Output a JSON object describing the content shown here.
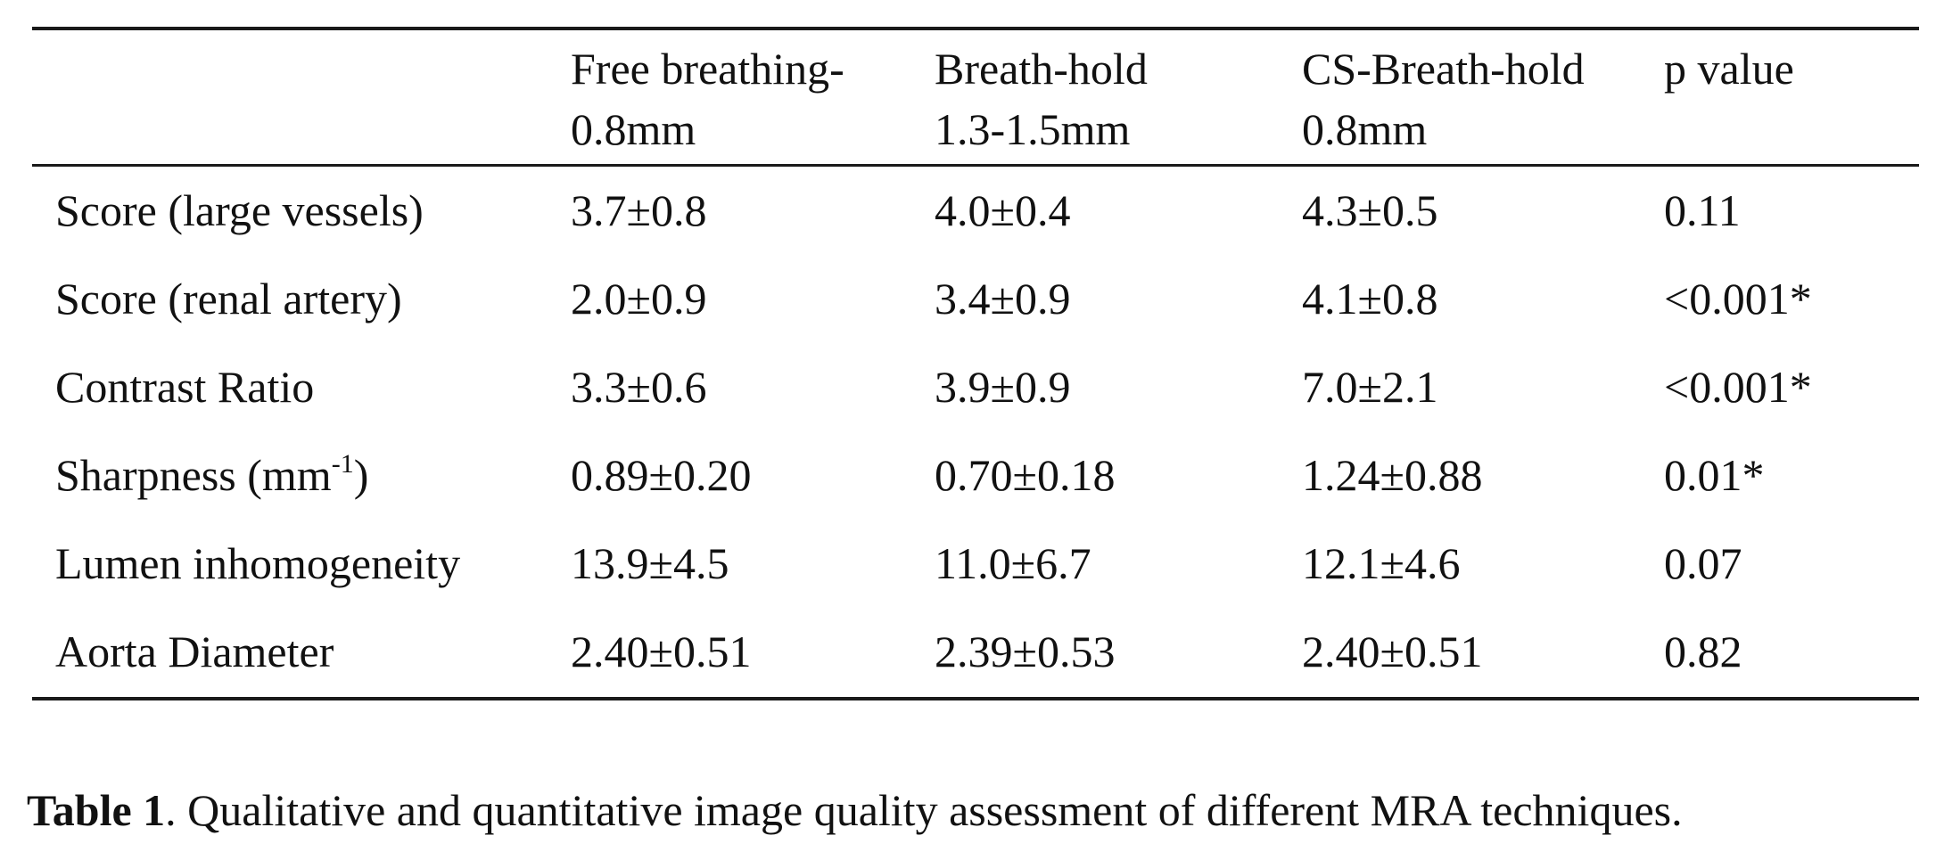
{
  "table": {
    "headers": [
      {
        "line1": "Free breathing-",
        "line2": "0.8mm"
      },
      {
        "line1": "Breath-hold",
        "line2": "1.3-1.5mm"
      },
      {
        "line1": "CS-Breath-hold",
        "line2": "0.8mm"
      },
      {
        "line1": "p value",
        "line2": ""
      }
    ],
    "rows": [
      {
        "label": "Score (large vessels)",
        "label_sup": "",
        "label_suffix": "",
        "values": [
          "3.7±0.8",
          "4.0±0.4",
          "4.3±0.5",
          "0.11"
        ]
      },
      {
        "label": "Score (renal artery)",
        "label_sup": "",
        "label_suffix": "",
        "values": [
          "2.0±0.9",
          "3.4±0.9",
          "4.1±0.8",
          "<0.001*"
        ]
      },
      {
        "label": "Contrast Ratio",
        "label_sup": "",
        "label_suffix": "",
        "values": [
          "3.3±0.6",
          "3.9±0.9",
          "7.0±2.1",
          "<0.001*"
        ]
      },
      {
        "label": "Sharpness (mm",
        "label_sup": "-1",
        "label_suffix": ")",
        "values": [
          "0.89±0.20",
          "0.70±0.18",
          "1.24±0.88",
          "0.01*"
        ]
      },
      {
        "label": "Lumen inhomogeneity",
        "label_sup": "",
        "label_suffix": "",
        "values": [
          "13.9±4.5",
          "11.0±6.7",
          "12.1±4.6",
          "0.07"
        ]
      },
      {
        "label": "Aorta Diameter",
        "label_sup": "",
        "label_suffix": "",
        "values": [
          "2.40±0.51",
          "2.39±0.53",
          "2.40±0.51",
          "0.82"
        ]
      }
    ]
  },
  "caption": {
    "label": "Table 1",
    "text": ". Qualitative and quantitative image quality assessment of different MRA techniques."
  }
}
